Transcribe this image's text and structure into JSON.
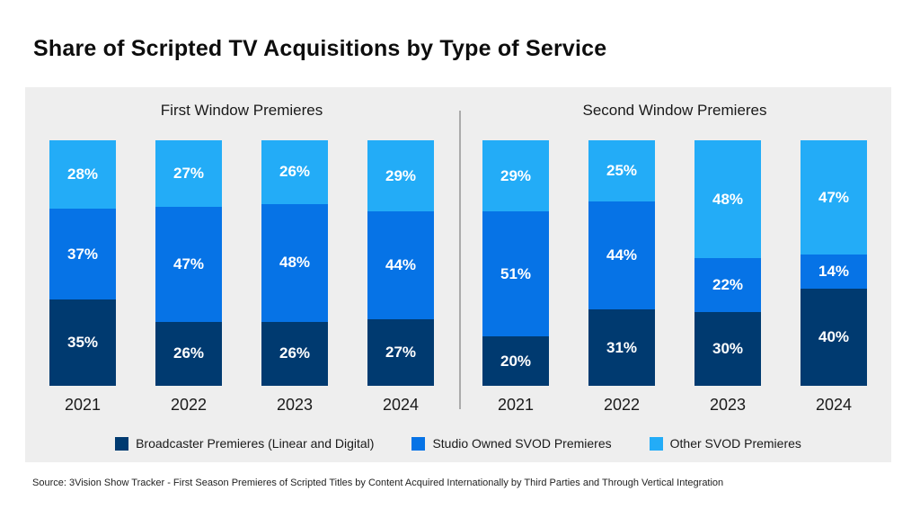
{
  "title": "Share of Scripted TV Acquisitions by Type of Service",
  "source": "Source: 3Vision Show Tracker - First Season Premieres of Scripted Titles by Content Acquired Internationally by Third Parties and Through Vertical Integration",
  "colors": {
    "broadcaster": "#003a70",
    "studio": "#0673e6",
    "other": "#23acf7",
    "panel_bg": "#eeeeee",
    "divider": "#ababab",
    "label_text": "#ffffff"
  },
  "legend": [
    {
      "label": "Broadcaster Premieres (Linear and Digital)",
      "color_key": "broadcaster"
    },
    {
      "label": "Studio Owned SVOD Premieres",
      "color_key": "studio"
    },
    {
      "label": "Other SVOD Premieres",
      "color_key": "other"
    }
  ],
  "chart_data": {
    "type": "bar",
    "stacked": true,
    "unit": "%",
    "ylim": [
      0,
      100
    ],
    "grid": false,
    "legend_position": "bottom",
    "groups": [
      {
        "title": "First Window Premieres",
        "categories": [
          "2021",
          "2022",
          "2023",
          "2024"
        ],
        "series": [
          {
            "name": "Broadcaster Premieres (Linear and Digital)",
            "color_key": "broadcaster",
            "values": [
              35,
              26,
              26,
              27
            ]
          },
          {
            "name": "Studio Owned SVOD Premieres",
            "color_key": "studio",
            "values": [
              37,
              47,
              48,
              44
            ]
          },
          {
            "name": "Other SVOD Premieres",
            "color_key": "other",
            "values": [
              28,
              27,
              26,
              29
            ]
          }
        ]
      },
      {
        "title": "Second Window Premieres",
        "categories": [
          "2021",
          "2022",
          "2023",
          "2024"
        ],
        "series": [
          {
            "name": "Broadcaster Premieres (Linear and Digital)",
            "color_key": "broadcaster",
            "values": [
              20,
              31,
              30,
              40
            ]
          },
          {
            "name": "Studio Owned SVOD Premieres",
            "color_key": "studio",
            "values": [
              51,
              44,
              22,
              14
            ]
          },
          {
            "name": "Other SVOD Premieres",
            "color_key": "other",
            "values": [
              29,
              25,
              48,
              47
            ]
          }
        ]
      }
    ]
  }
}
